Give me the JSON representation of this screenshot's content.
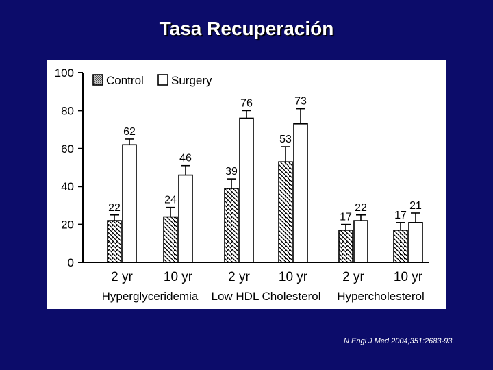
{
  "slide": {
    "title": "Tasa Recuperación",
    "citation": "N Engl J Med 2004;351:2683-93."
  },
  "colors": {
    "background": "#0c0c6a",
    "panel": "#ffffff",
    "ink": "#000000"
  },
  "chart_data": {
    "type": "bar",
    "categories": [
      "2 yr",
      "10 yr",
      "2 yr",
      "10 yr",
      "2 yr",
      "10 yr"
    ],
    "groups": [
      {
        "label": "Hyperglyceridemia",
        "categories": [
          0,
          1
        ]
      },
      {
        "label": "Low HDL Cholesterol",
        "categories": [
          2,
          3
        ]
      },
      {
        "label": "Hypercholesterol",
        "categories": [
          4,
          5
        ]
      }
    ],
    "series": [
      {
        "name": "Control",
        "pattern": "hatched",
        "values": [
          22,
          24,
          39,
          53,
          17,
          17
        ],
        "error_high": [
          25,
          29,
          44,
          61,
          20,
          21
        ]
      },
      {
        "name": "Surgery",
        "pattern": "open",
        "values": [
          62,
          46,
          76,
          73,
          22,
          21
        ],
        "error_high": [
          65,
          51,
          80,
          81,
          25,
          26
        ]
      }
    ],
    "data_labels": [
      [
        "22",
        "24",
        "39",
        "53",
        "17",
        "17"
      ],
      [
        "62",
        "46",
        "76",
        "73",
        "22",
        "21"
      ]
    ],
    "yticks": [
      0,
      20,
      40,
      60,
      80,
      100
    ],
    "ylim": [
      0,
      100
    ],
    "title": "",
    "xlabel": "",
    "ylabel": "",
    "legend": {
      "position": "top-left",
      "entries": [
        "Control",
        "Surgery"
      ]
    },
    "grid": false
  }
}
